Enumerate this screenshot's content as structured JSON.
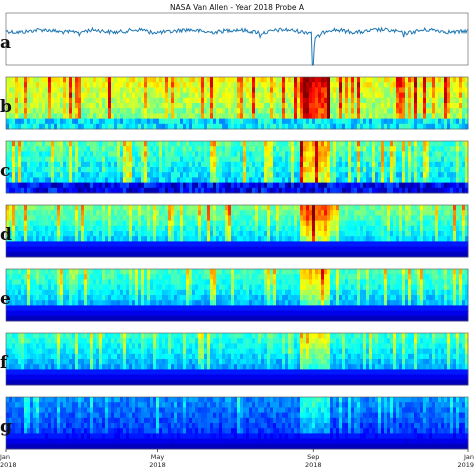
{
  "figure": {
    "title": "NASA Van Allen - Year 2018 Probe A"
  },
  "chart_data": {
    "type": "line",
    "title": "NASA Van Allen - Year 2018 Probe A",
    "x_axis": {
      "ticks": [
        {
          "month": "Jan",
          "year": "2018",
          "pos": 0.0
        },
        {
          "month": "May",
          "year": "2018",
          "pos": 0.328
        },
        {
          "month": "Sep",
          "year": "2018",
          "pos": 0.665
        },
        {
          "month": "Jan",
          "year": "2019",
          "pos": 1.0
        }
      ]
    },
    "panels": [
      {
        "label": "a",
        "kind": "line",
        "color": "#1f77b4",
        "events": [
          {
            "x": 0.665,
            "depth": 1.0
          },
          {
            "x": 0.16,
            "depth": 0.18
          },
          {
            "x": 0.31,
            "depth": 0.15
          },
          {
            "x": 0.55,
            "depth": 0.12
          },
          {
            "x": 0.86,
            "depth": 0.14
          }
        ]
      },
      {
        "label": "b",
        "kind": "spectrogram",
        "base": 0.62,
        "bottom_band": 0.35,
        "intensity": 0.95
      },
      {
        "label": "c",
        "kind": "spectrogram",
        "base": 0.45,
        "bottom_band": 0.12,
        "intensity": 0.85
      },
      {
        "label": "d",
        "kind": "spectrogram",
        "base": 0.42,
        "bottom_band": 0.0,
        "intensity": 0.9
      },
      {
        "label": "e",
        "kind": "spectrogram",
        "base": 0.38,
        "bottom_band": 0.0,
        "intensity": 0.7
      },
      {
        "label": "f",
        "kind": "spectrogram",
        "base": 0.36,
        "bottom_band": 0.0,
        "intensity": 0.55
      },
      {
        "label": "g",
        "kind": "spectrogram",
        "base": 0.22,
        "bottom_band": 0.0,
        "intensity": 0.45
      }
    ],
    "colormap": "jet",
    "colors": {
      "line": "#1f77b4",
      "grid": "#888888"
    }
  }
}
